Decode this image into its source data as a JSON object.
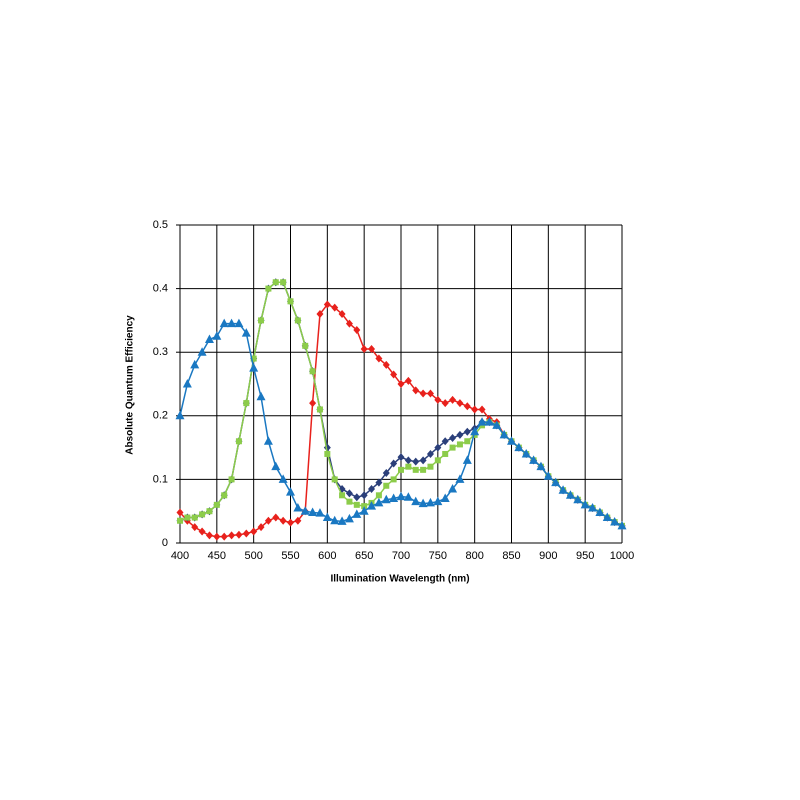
{
  "chart_data": {
    "type": "line",
    "x_label": "Illumination Wavelength (nm)",
    "y_label": "Absolute Quantum Efficiency",
    "x": [
      400,
      410,
      420,
      430,
      440,
      450,
      460,
      470,
      480,
      490,
      500,
      510,
      520,
      530,
      540,
      550,
      560,
      570,
      580,
      590,
      600,
      610,
      620,
      630,
      640,
      650,
      660,
      670,
      680,
      690,
      700,
      710,
      720,
      730,
      740,
      750,
      760,
      770,
      780,
      790,
      800,
      810,
      820,
      830,
      840,
      850,
      860,
      870,
      880,
      890,
      900,
      910,
      920,
      930,
      940,
      950,
      960,
      970,
      980,
      990,
      1000
    ],
    "xlim": [
      400,
      1000
    ],
    "xticks": [
      400,
      450,
      500,
      550,
      600,
      650,
      700,
      750,
      800,
      850,
      900,
      950,
      1000
    ],
    "ylim": [
      0,
      0.5
    ],
    "yticks": [
      0,
      0.1,
      0.2,
      0.3,
      0.4,
      0.5
    ],
    "grid": true,
    "series": [
      {
        "color": "#e8211c",
        "marker": "diamond",
        "values": [
          0.048,
          0.035,
          0.025,
          0.018,
          0.012,
          0.01,
          0.01,
          0.012,
          0.013,
          0.015,
          0.018,
          0.025,
          0.035,
          0.04,
          0.035,
          0.032,
          0.035,
          0.05,
          0.22,
          0.36,
          0.375,
          0.37,
          0.36,
          0.345,
          0.335,
          0.305,
          0.305,
          0.29,
          0.28,
          0.265,
          0.25,
          0.255,
          0.24,
          0.235,
          0.235,
          0.225,
          0.22,
          0.225,
          0.22,
          0.215,
          0.21,
          0.21,
          0.195,
          0.19,
          0.17,
          0.16,
          0.15,
          0.14,
          0.13,
          0.12,
          0.105,
          0.095,
          0.083,
          0.075,
          0.068,
          0.06,
          0.055,
          0.048,
          0.04,
          0.033,
          0.027
        ]
      },
      {
        "color": "#2b3f7a",
        "marker": "diamond",
        "values": [
          0.035,
          0.04,
          0.04,
          0.045,
          0.05,
          0.06,
          0.075,
          0.1,
          0.16,
          0.22,
          0.29,
          0.35,
          0.4,
          0.41,
          0.41,
          0.38,
          0.35,
          0.31,
          0.27,
          0.21,
          0.15,
          0.1,
          0.085,
          0.078,
          0.072,
          0.075,
          0.085,
          0.095,
          0.11,
          0.125,
          0.135,
          0.13,
          0.128,
          0.13,
          0.14,
          0.15,
          0.16,
          0.165,
          0.17,
          0.175,
          0.18,
          0.19,
          0.19,
          0.185,
          0.17,
          0.16,
          0.15,
          0.14,
          0.13,
          0.12,
          0.105,
          0.095,
          0.083,
          0.075,
          0.068,
          0.06,
          0.055,
          0.048,
          0.04,
          0.033,
          0.027
        ]
      },
      {
        "color": "#8ccc4a",
        "marker": "square",
        "values": [
          0.035,
          0.04,
          0.04,
          0.045,
          0.05,
          0.06,
          0.075,
          0.1,
          0.16,
          0.22,
          0.29,
          0.35,
          0.4,
          0.41,
          0.41,
          0.38,
          0.35,
          0.31,
          0.27,
          0.21,
          0.14,
          0.1,
          0.075,
          0.065,
          0.06,
          0.058,
          0.063,
          0.075,
          0.09,
          0.1,
          0.115,
          0.12,
          0.115,
          0.115,
          0.12,
          0.13,
          0.14,
          0.15,
          0.155,
          0.16,
          0.17,
          0.185,
          0.19,
          0.185,
          0.17,
          0.16,
          0.15,
          0.14,
          0.13,
          0.12,
          0.105,
          0.095,
          0.083,
          0.075,
          0.068,
          0.06,
          0.055,
          0.048,
          0.04,
          0.033,
          0.027
        ]
      },
      {
        "color": "#1a78c2",
        "marker": "triangle",
        "values": [
          0.2,
          0.25,
          0.28,
          0.3,
          0.32,
          0.325,
          0.345,
          0.345,
          0.345,
          0.33,
          0.275,
          0.23,
          0.16,
          0.12,
          0.1,
          0.08,
          0.055,
          0.05,
          0.048,
          0.047,
          0.04,
          0.035,
          0.034,
          0.038,
          0.045,
          0.05,
          0.058,
          0.063,
          0.068,
          0.07,
          0.073,
          0.072,
          0.065,
          0.062,
          0.063,
          0.065,
          0.07,
          0.085,
          0.1,
          0.13,
          0.175,
          0.19,
          0.19,
          0.185,
          0.17,
          0.16,
          0.15,
          0.14,
          0.13,
          0.12,
          0.105,
          0.095,
          0.083,
          0.075,
          0.068,
          0.06,
          0.055,
          0.048,
          0.04,
          0.033,
          0.027
        ]
      }
    ]
  }
}
